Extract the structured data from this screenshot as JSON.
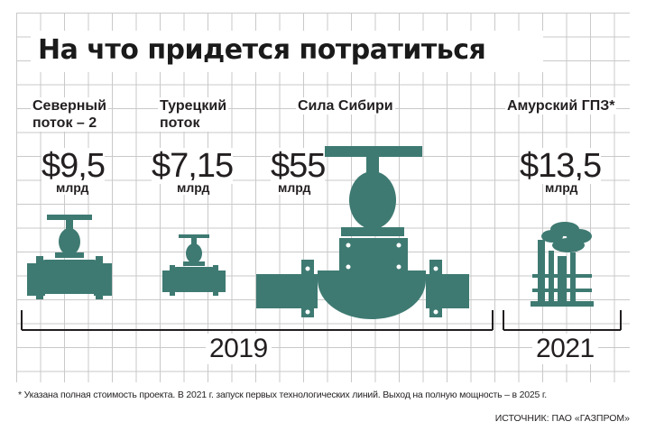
{
  "title": "На что придется потратиться",
  "chart_data": {
    "type": "pictorial-bar",
    "title": "На что придется потратиться",
    "unit": "млрд",
    "currency": "$",
    "categories": [
      "Северный поток – 2",
      "Турецкий поток",
      "Сила Сибири",
      "Амурский ГПЗ*"
    ],
    "values": [
      9.5,
      7.15,
      55,
      13.5
    ],
    "value_labels": [
      "$9,5",
      "$7,15",
      "$55",
      "$13,5"
    ],
    "groups": [
      {
        "label": "2019",
        "members": [
          "Северный поток – 2",
          "Турецкий поток",
          "Сила Сибири"
        ]
      },
      {
        "label": "2021",
        "members": [
          "Амурский ГПЗ*"
        ]
      }
    ]
  },
  "projects": [
    {
      "name_line1": "Северный",
      "name_line2": "поток – 2",
      "value": "$9,5",
      "unit": "млрд"
    },
    {
      "name_line1": "Турецкий",
      "name_line2": "поток",
      "value": "$7,15",
      "unit": "млрд"
    },
    {
      "name_line1": "Сила Сибири",
      "name_line2": "",
      "value": "$55",
      "unit": "млрд"
    },
    {
      "name_line1": "Амурский ГПЗ*",
      "name_line2": "",
      "value": "$13,5",
      "unit": "млрд"
    }
  ],
  "years": {
    "group1": "2019",
    "group2": "2021"
  },
  "footnote": "* Указана полная стоимость проекта. В 2021 г. запуск первых технологических линий. Выход на полную мощность – в 2025 г.",
  "source": "ИСТОЧНИК: ПАО «ГАЗПРОМ»",
  "colors": {
    "icon": "#3e7a72",
    "grid": "#c9c9c9",
    "text": "#231f20"
  }
}
